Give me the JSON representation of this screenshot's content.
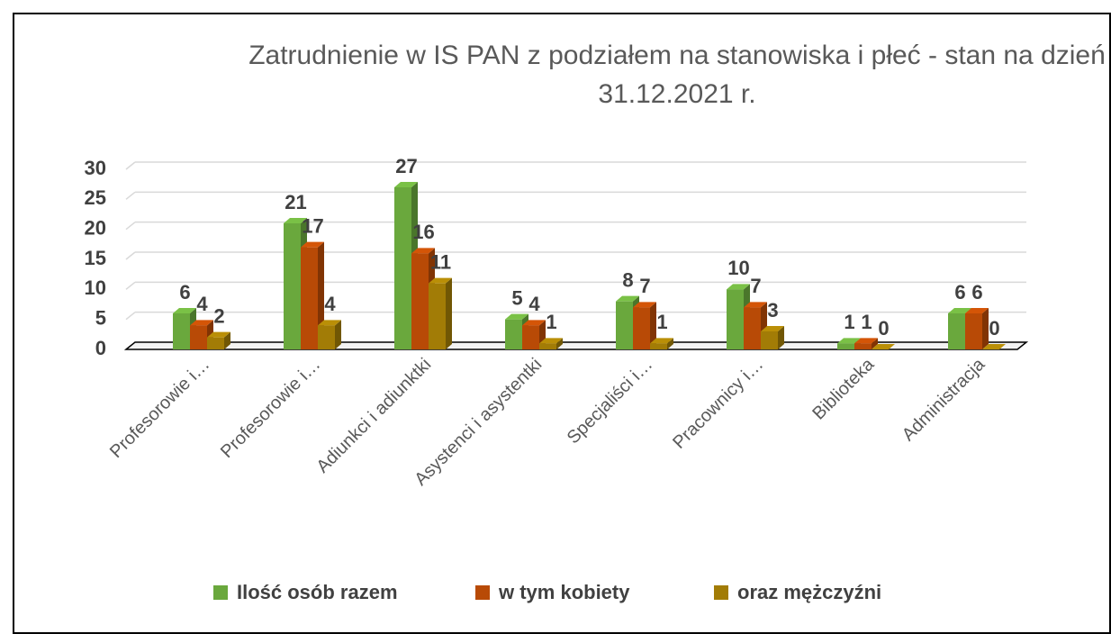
{
  "chart_data": {
    "type": "bar3d",
    "title": "Zatrudnienie w IS PAN z podziałem na stanowiska i płeć - stan na dzień 31.12.2021 r.",
    "categories": [
      "Profesorowie i…",
      "Profesorowie i…",
      "Adiunkci i adiunktki",
      "Asystenci i asystentki",
      "Specjaliści i…",
      "Pracownicy i…",
      "Biblioteka",
      "Administracja"
    ],
    "series": [
      {
        "name": "Ilość osób razem",
        "color": "#6aa83d",
        "values": [
          6,
          21,
          27,
          5,
          8,
          10,
          1,
          6
        ]
      },
      {
        "name": "w tym kobiety",
        "color": "#b84a06",
        "values": [
          4,
          17,
          16,
          4,
          7,
          7,
          1,
          6
        ]
      },
      {
        "name": "oraz mężczyźni",
        "color": "#a27c06",
        "values": [
          2,
          4,
          11,
          1,
          1,
          3,
          0,
          0
        ]
      }
    ],
    "ylim": [
      0,
      30
    ],
    "yticks": [
      0,
      5,
      10,
      15,
      20,
      25,
      30
    ],
    "grid": true,
    "legend": "bottom"
  }
}
